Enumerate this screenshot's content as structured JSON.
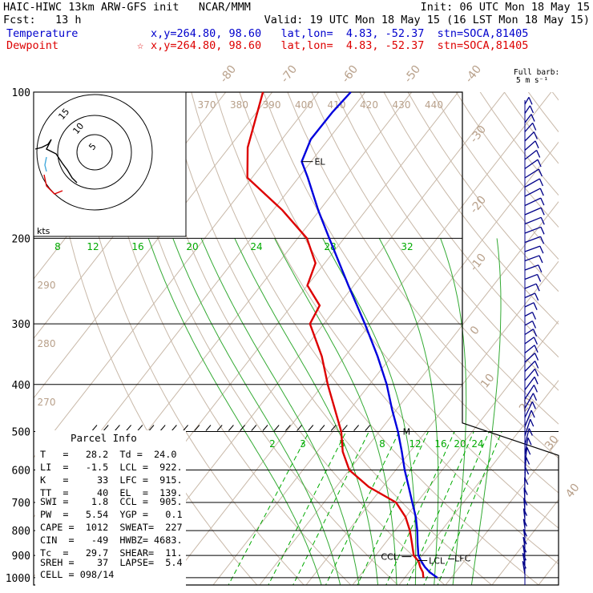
{
  "header": {
    "line1_left": "HAIC-HIWC 13km ARW-GFS init   NCAR/MMM",
    "line1_right": "Init: 06 UTC Mon 18 May 15",
    "line2_left": "Fcst:   13 h",
    "line2_right": "Valid: 19 UTC Mon 18 May 15 (16 LST Mon 18 May 15)",
    "temp_label": "Temperature",
    "temp_info": "x,y=264.80, 98.60   lat,lon=  4.83, -52.37  stn=SOCA,81405",
    "dew_label": "Dewpoint",
    "dew_info": "x,y=264.80, 98.60   lat,lon=  4.83, -52.37  stn=SOCA,81405",
    "dew_marker": "☆",
    "barb_title_1": "Full barb:",
    "barb_title_2": "5 m s⁻¹"
  },
  "colors": {
    "temperature": "#0000dd",
    "dewpoint": "#dd0000",
    "header_temp": "#0000cc",
    "header_dew": "#dd0000",
    "isotherm": "#c8b8a8",
    "theta_label": "#b8a08a",
    "mixing_ratio": "#00aa00",
    "moist_adiabat": "#33aa33",
    "isobar": "#000000",
    "barb": "#000088"
  },
  "chart_data": {
    "type": "line",
    "chart_kind": "skew-T log-P sounding",
    "pressure_ticks": [
      "100",
      "200",
      "300",
      "400",
      "500",
      "600",
      "700",
      "800",
      "900",
      "1000"
    ],
    "isotherm_labels": [
      "-80",
      "-70",
      "-60",
      "-50",
      "-40",
      "-30",
      "-20",
      "-10",
      "0",
      "10",
      "20",
      "30",
      "40"
    ],
    "theta_labels": [
      "370",
      "380",
      "390",
      "400",
      "410",
      "420",
      "430",
      "440"
    ],
    "theta_labels_left": [
      "290",
      "280",
      "270"
    ],
    "moist_labels": [
      "8",
      "12",
      "16",
      "20",
      "24",
      "28",
      "32"
    ],
    "mixing_labels": [
      "2",
      "3",
      "5",
      "8",
      "12",
      "16",
      "20",
      "24"
    ],
    "series": [
      {
        "name": "Temperature",
        "points": [
          [
            1000,
            27.0
          ],
          [
            975,
            24.5
          ],
          [
            950,
            22.5
          ],
          [
            925,
            20.8
          ],
          [
            900,
            19.2
          ],
          [
            850,
            17.0
          ],
          [
            800,
            14.8
          ],
          [
            750,
            12.2
          ],
          [
            700,
            9.0
          ],
          [
            650,
            5.6
          ],
          [
            600,
            1.9
          ],
          [
            550,
            -1.8
          ],
          [
            500,
            -6.0
          ],
          [
            450,
            -11.0
          ],
          [
            400,
            -16.3
          ],
          [
            350,
            -23.0
          ],
          [
            300,
            -31.2
          ],
          [
            250,
            -41.2
          ],
          [
            200,
            -53.2
          ],
          [
            175,
            -60.3
          ],
          [
            150,
            -68.0
          ],
          [
            139,
            -72.0
          ],
          [
            125,
            -73.8
          ],
          [
            110,
            -73.7
          ],
          [
            100,
            -73.1
          ]
        ]
      },
      {
        "name": "Dewpoint",
        "points": [
          [
            1000,
            24.0
          ],
          [
            975,
            23.0
          ],
          [
            950,
            21.5
          ],
          [
            925,
            20.2
          ],
          [
            900,
            18.2
          ],
          [
            850,
            15.8
          ],
          [
            800,
            13.2
          ],
          [
            750,
            10.0
          ],
          [
            700,
            5.5
          ],
          [
            650,
            -3.0
          ],
          [
            600,
            -10.0
          ],
          [
            550,
            -14.5
          ],
          [
            500,
            -18.2
          ],
          [
            450,
            -23.3
          ],
          [
            400,
            -29.0
          ],
          [
            350,
            -35.0
          ],
          [
            300,
            -43.0
          ],
          [
            275,
            -44.0
          ],
          [
            250,
            -50.0
          ],
          [
            225,
            -52.0
          ],
          [
            200,
            -58.0
          ],
          [
            175,
            -68.0
          ],
          [
            150,
            -81.0
          ],
          [
            130,
            -86.0
          ],
          [
            100,
            -92.0
          ]
        ]
      }
    ],
    "levels": {
      "EL": "EL",
      "LCL": "LCL",
      "LFC": "LFC",
      "CCL": "CCL",
      "M": "M"
    },
    "hodograph": {
      "ring_labels": [
        "5",
        "10",
        "15"
      ],
      "unit": "kts"
    },
    "parcel_info": {
      "title": "Parcel Info",
      "rows": [
        "T   =   28.2  Td =  24.0",
        "LI  =   -1.5  LCL =  922.",
        "K   =     33  LFC =  915.",
        "TT  =     40  EL  =  139.",
        "SWI =    1.8  CCL =  905.",
        "PW  =   5.54  YGP =   0.1",
        "CAPE =  1012  SWEAT=  227",
        "CIN  =   -49  HWBZ= 4683.",
        "Tc  =   29.7  SHEAR=  11.",
        "SREH =    37  LAPSE=  5.4",
        "CELL = 098/14"
      ]
    }
  }
}
